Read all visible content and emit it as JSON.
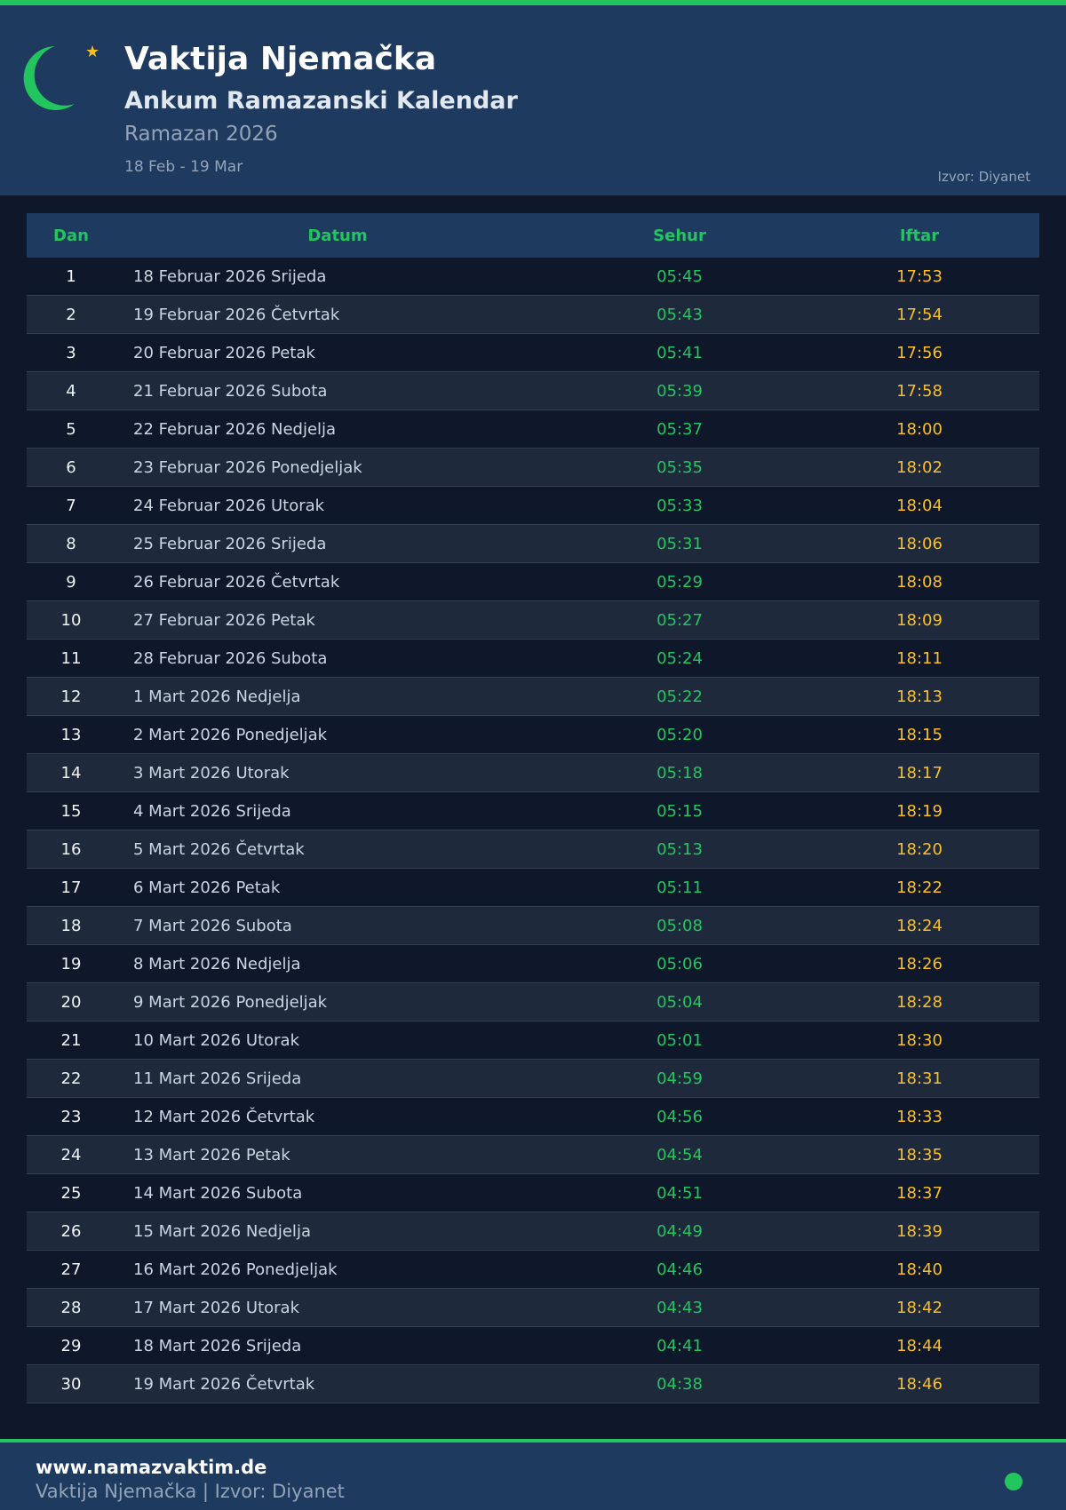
{
  "header": {
    "title": "Vaktija Njemačka",
    "subtitle": "Ankum Ramazanski Kalendar",
    "year": "Ramazan 2026",
    "range": "18 Feb - 19 Mar",
    "source": "Izvor: Diyanet",
    "icons": [
      "crescent-moon-icon",
      "star-icon"
    ]
  },
  "colors": {
    "accent": "#22c55e",
    "iftar": "#fbbf24",
    "header_bg": "#1e3a5f",
    "page_bg": "#0f172a"
  },
  "table": {
    "columns": [
      "Dan",
      "Datum",
      "Sehur",
      "Iftar"
    ],
    "rows": [
      [
        "1",
        "18 Februar 2026 Srijeda",
        "05:45",
        "17:53"
      ],
      [
        "2",
        "19 Februar 2026 Četvrtak",
        "05:43",
        "17:54"
      ],
      [
        "3",
        "20 Februar 2026 Petak",
        "05:41",
        "17:56"
      ],
      [
        "4",
        "21 Februar 2026 Subota",
        "05:39",
        "17:58"
      ],
      [
        "5",
        "22 Februar 2026 Nedjelja",
        "05:37",
        "18:00"
      ],
      [
        "6",
        "23 Februar 2026 Ponedjeljak",
        "05:35",
        "18:02"
      ],
      [
        "7",
        "24 Februar 2026 Utorak",
        "05:33",
        "18:04"
      ],
      [
        "8",
        "25 Februar 2026 Srijeda",
        "05:31",
        "18:06"
      ],
      [
        "9",
        "26 Februar 2026 Četvrtak",
        "05:29",
        "18:08"
      ],
      [
        "10",
        "27 Februar 2026 Petak",
        "05:27",
        "18:09"
      ],
      [
        "11",
        "28 Februar 2026 Subota",
        "05:24",
        "18:11"
      ],
      [
        "12",
        "1 Mart 2026 Nedjelja",
        "05:22",
        "18:13"
      ],
      [
        "13",
        "2 Mart 2026 Ponedjeljak",
        "05:20",
        "18:15"
      ],
      [
        "14",
        "3 Mart 2026 Utorak",
        "05:18",
        "18:17"
      ],
      [
        "15",
        "4 Mart 2026 Srijeda",
        "05:15",
        "18:19"
      ],
      [
        "16",
        "5 Mart 2026 Četvrtak",
        "05:13",
        "18:20"
      ],
      [
        "17",
        "6 Mart 2026 Petak",
        "05:11",
        "18:22"
      ],
      [
        "18",
        "7 Mart 2026 Subota",
        "05:08",
        "18:24"
      ],
      [
        "19",
        "8 Mart 2026 Nedjelja",
        "05:06",
        "18:26"
      ],
      [
        "20",
        "9 Mart 2026 Ponedjeljak",
        "05:04",
        "18:28"
      ],
      [
        "21",
        "10 Mart 2026 Utorak",
        "05:01",
        "18:30"
      ],
      [
        "22",
        "11 Mart 2026 Srijeda",
        "04:59",
        "18:31"
      ],
      [
        "23",
        "12 Mart 2026 Četvrtak",
        "04:56",
        "18:33"
      ],
      [
        "24",
        "13 Mart 2026 Petak",
        "04:54",
        "18:35"
      ],
      [
        "25",
        "14 Mart 2026 Subota",
        "04:51",
        "18:37"
      ],
      [
        "26",
        "15 Mart 2026 Nedjelja",
        "04:49",
        "18:39"
      ],
      [
        "27",
        "16 Mart 2026 Ponedjeljak",
        "04:46",
        "18:40"
      ],
      [
        "28",
        "17 Mart 2026 Utorak",
        "04:43",
        "18:42"
      ],
      [
        "29",
        "18 Mart 2026 Srijeda",
        "04:41",
        "18:44"
      ],
      [
        "30",
        "19 Mart 2026 Četvrtak",
        "04:38",
        "18:46"
      ]
    ]
  },
  "footer": {
    "url": "www.namazvaktim.de",
    "subtitle": "Vaktija Njemačka | Izvor: Diyanet"
  }
}
